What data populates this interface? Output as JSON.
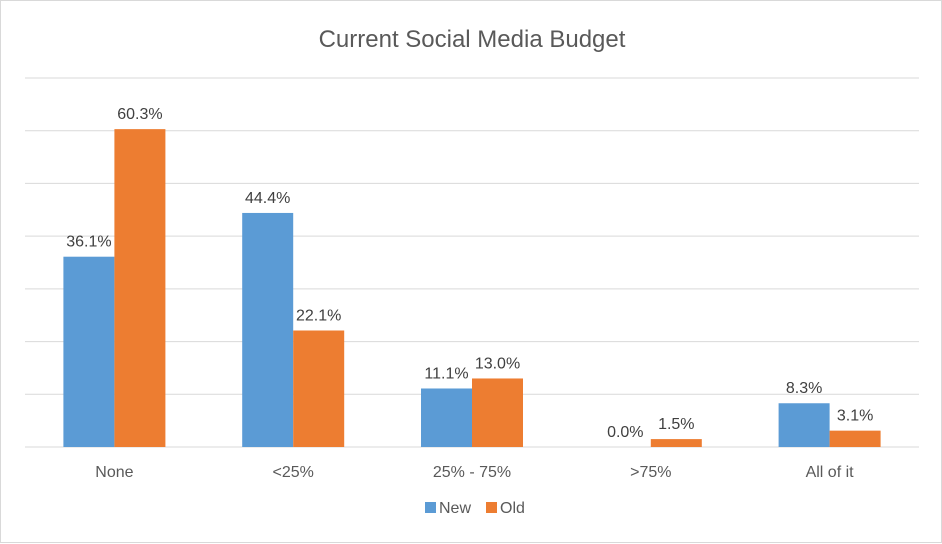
{
  "chart_data": {
    "type": "bar",
    "title": "Current Social Media Budget",
    "categories": [
      "None",
      "<25%",
      "25% - 75%",
      ">75%",
      "All of it"
    ],
    "series": [
      {
        "name": "New",
        "color": "#5b9bd5",
        "values": [
          36.1,
          44.4,
          11.1,
          0.0,
          8.3
        ],
        "labels": [
          "36.1%",
          "44.4%",
          "11.1%",
          "0.0%",
          "8.3%"
        ]
      },
      {
        "name": "Old",
        "color": "#ed7d31",
        "values": [
          60.3,
          22.1,
          13.0,
          1.5,
          3.1
        ],
        "labels": [
          "60.3%",
          "22.1%",
          "13.0%",
          "1.5%",
          "3.1%"
        ]
      }
    ],
    "ylim": [
      0,
      70
    ],
    "grid": true,
    "gridlines_at": [
      0,
      10,
      20,
      30,
      40,
      50,
      60,
      70
    ],
    "legend_position": "bottom",
    "y_tick_labels_shown": false
  }
}
